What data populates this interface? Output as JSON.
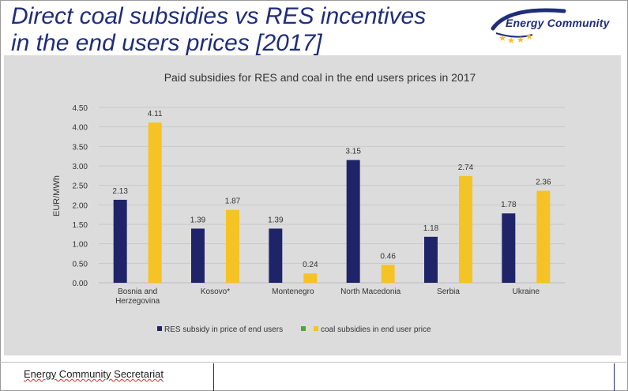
{
  "slide": {
    "title": "Direct coal subsidies vs RES incentives\n in the end users prices [2017]",
    "logo_text": "Energy Community",
    "footer_text": "Energy Community Secretariat"
  },
  "colors": {
    "title": "#1f2d7a",
    "res": "#1f2468",
    "coal": "#f5c325",
    "legend_green": "#4ca63a",
    "chart_bg": "#dcdcdc",
    "logo_arc": "#1f2d7a",
    "logo_stars": "#f5c325"
  },
  "chart_data": {
    "type": "bar",
    "title": "Paid subsidies for RES and coal in the end users prices in 2017",
    "xlabel": "",
    "ylabel": "EUR/MWh",
    "ylim": [
      0,
      4.5
    ],
    "yticks": [
      "0.00",
      "0.50",
      "1.00",
      "1.50",
      "2.00",
      "2.50",
      "3.00",
      "3.50",
      "4.00",
      "4.50"
    ],
    "categories": [
      [
        "Bosnia and",
        "Herzegovina"
      ],
      [
        "Kosovo*"
      ],
      [
        "Montenegro"
      ],
      [
        "North Macedonia"
      ],
      [
        "Serbia"
      ],
      [
        "Ukraine"
      ]
    ],
    "series": [
      {
        "name": "RES subsidy in price of end users",
        "values": [
          2.13,
          1.39,
          1.39,
          3.15,
          1.18,
          1.78
        ],
        "labels": [
          "2.13",
          "1.39",
          "1.39",
          "3.15",
          "1.18",
          "1.78"
        ]
      },
      {
        "name": "coal subsidies in end user price",
        "values": [
          4.11,
          1.87,
          0.24,
          0.46,
          2.74,
          2.36
        ],
        "labels": [
          "4.11",
          "1.87",
          "0.24",
          "0.46",
          "2.74",
          "2.36"
        ]
      }
    ],
    "legend": [
      "RES subsidy in price of end users",
      "",
      "coal subsidies in end user price"
    ],
    "gridlines": true,
    "legend_position": "bottom"
  }
}
